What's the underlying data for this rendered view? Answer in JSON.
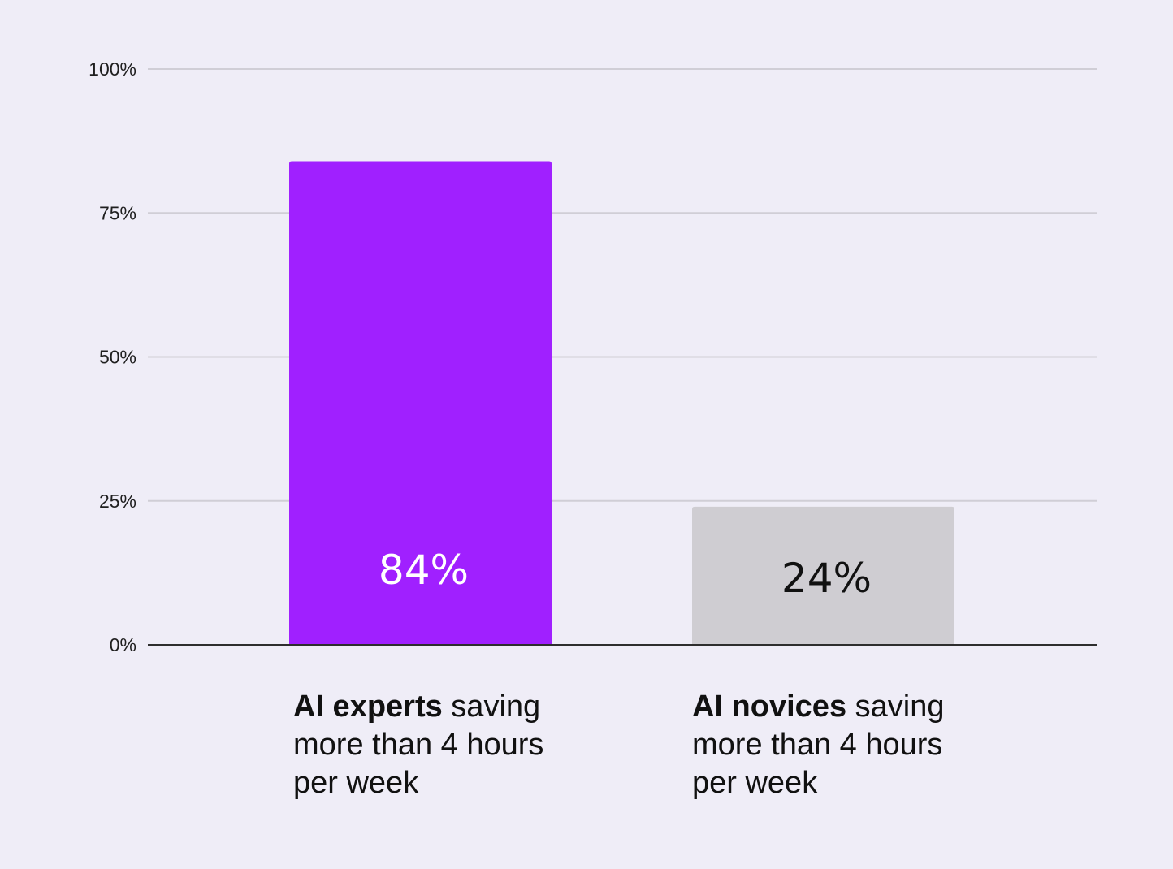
{
  "chart_data": {
    "type": "bar",
    "categories": [
      {
        "bold": "AI experts",
        "rest_line1": " saving",
        "line2": "more than 4 hours",
        "line3": "per week"
      },
      {
        "bold": "AI novices",
        "rest_line1": " saving",
        "line2": "more than 4 hours",
        "line3": "per week"
      }
    ],
    "values": [
      84,
      24
    ],
    "value_labels": [
      "84%",
      "24%"
    ],
    "bar_colors": [
      "#a020ff",
      "#cfcdd2"
    ],
    "value_label_colors": [
      "#ffffff",
      "#111111"
    ],
    "ylim": [
      0,
      100
    ],
    "yticks": [
      0,
      25,
      50,
      75,
      100
    ],
    "ytick_labels": [
      "0%",
      "25%",
      "50%",
      "75%",
      "100%"
    ],
    "grid": true,
    "legend": "none",
    "title": "",
    "xlabel": "",
    "ylabel": ""
  }
}
